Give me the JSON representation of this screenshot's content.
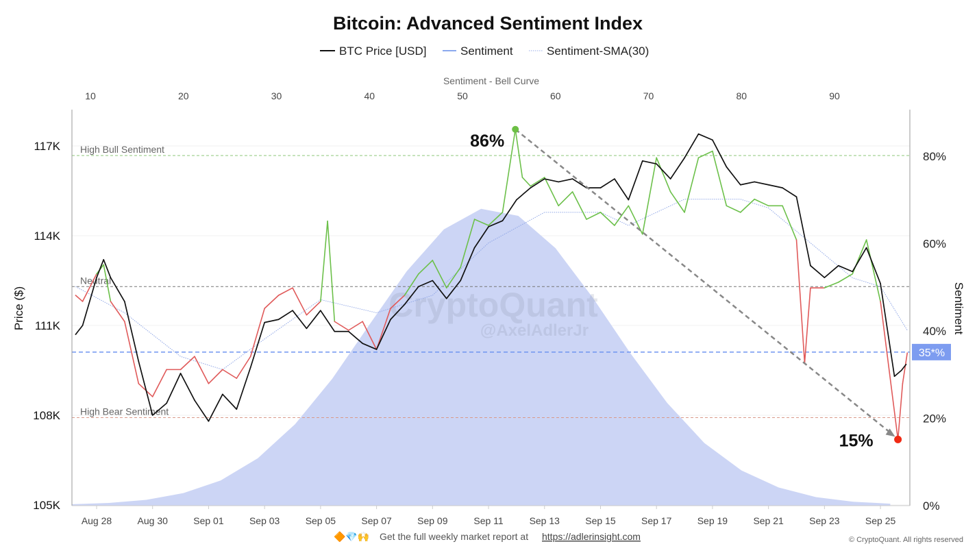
{
  "chart_data": {
    "type": "line",
    "title": "Bitcoin: Advanced Sentiment Index",
    "legend": [
      {
        "label": "BTC Price [USD]",
        "color": "#111111",
        "style": "solid"
      },
      {
        "label": "Sentiment",
        "color": "#8aa8ee",
        "style": "solid"
      },
      {
        "label": "Sentiment-SMA(30)",
        "color": "#9aaee8",
        "style": "dotted"
      }
    ],
    "legend_placement": "top",
    "grid": true,
    "top_axis": {
      "label": "Sentiment - Bell Curve",
      "ticks": [
        10,
        20,
        30,
        40,
        50,
        60,
        70,
        80,
        90
      ]
    },
    "x_ticks": [
      "Aug 28",
      "Aug 30",
      "Sep 01",
      "Sep 03",
      "Sep 05",
      "Sep 07",
      "Sep 09",
      "Sep 11",
      "Sep 13",
      "Sep 15",
      "Sep 17",
      "Sep 19",
      "Sep 21",
      "Sep 23",
      "Sep 25"
    ],
    "y_left": {
      "label": "Price ($)",
      "unit": "K",
      "ticks": [
        105,
        108,
        111,
        114,
        117
      ],
      "tick_labels": [
        "105K",
        "108K",
        "111K",
        "114K",
        "117K"
      ]
    },
    "y_right": {
      "label": "Sentiment",
      "ticks": [
        0,
        20,
        40,
        60,
        80
      ],
      "tick_labels": [
        "0%",
        "20%",
        "40%",
        "60%",
        "80%"
      ]
    },
    "reference_lines": [
      {
        "label": "High Bull Sentiment",
        "value": 80,
        "color": "#8cc77a"
      },
      {
        "label": "Neutral",
        "value": 50,
        "color": "#777777"
      },
      {
        "label": "High Bear Sentiment",
        "value": 20,
        "color": "#d99a8a"
      },
      {
        "label": "35*%",
        "value": 35,
        "color": "#6f95f0"
      }
    ],
    "annotations": [
      {
        "text": "86%",
        "x": "Sep 11 23:00",
        "y": 86,
        "color": "#6cbf45"
      },
      {
        "text": "15%",
        "x": "Sep 25 15:00",
        "y": 15,
        "color": "#f02a14"
      }
    ],
    "colors": {
      "bullish": "#6cc04a",
      "bearish": "#e05a5a",
      "price": "#111111",
      "bell": "#c9d3f4",
      "sma": "#8fa6e6"
    },
    "watermark": "CryptoQuant @AxelAdlerJr",
    "series": [
      {
        "name": "BTC Price [USD]",
        "axis": "left",
        "points": [
          [
            "Aug 27 06:00",
            110.7
          ],
          [
            "Aug 27 12:00",
            111.0
          ],
          [
            "Aug 28 00:00",
            112.6
          ],
          [
            "Aug 28 06:00",
            113.2
          ],
          [
            "Aug 28 12:00",
            112.6
          ],
          [
            "Aug 29 00:00",
            111.8
          ],
          [
            "Aug 29 12:00",
            109.8
          ],
          [
            "Aug 30 00:00",
            108.0
          ],
          [
            "Aug 30 12:00",
            108.4
          ],
          [
            "Aug 31 00:00",
            109.4
          ],
          [
            "Aug 31 12:00",
            108.5
          ],
          [
            "Sep 1 00:00",
            107.8
          ],
          [
            "Sep 1 12:00",
            108.7
          ],
          [
            "Sep 2 00:00",
            108.2
          ],
          [
            "Sep 2 12:00",
            109.6
          ],
          [
            "Sep 3 00:00",
            111.1
          ],
          [
            "Sep 3 12:00",
            111.2
          ],
          [
            "Sep 4 00:00",
            111.5
          ],
          [
            "Sep 4 12:00",
            110.9
          ],
          [
            "Sep 5 00:00",
            111.5
          ],
          [
            "Sep 5 12:00",
            110.8
          ],
          [
            "Sep 6 00:00",
            110.8
          ],
          [
            "Sep 6 12:00",
            110.4
          ],
          [
            "Sep 7 00:00",
            110.2
          ],
          [
            "Sep 7 12:00",
            111.2
          ],
          [
            "Sep 8 00:00",
            111.7
          ],
          [
            "Sep 8 12:00",
            112.3
          ],
          [
            "Sep 9 00:00",
            112.5
          ],
          [
            "Sep 9 12:00",
            111.9
          ],
          [
            "Sep 10 00:00",
            112.5
          ],
          [
            "Sep 10 12:00",
            113.6
          ],
          [
            "Sep 11 00:00",
            114.3
          ],
          [
            "Sep 11 12:00",
            114.5
          ],
          [
            "Sep 12 00:00",
            115.2
          ],
          [
            "Sep 12 12:00",
            115.6
          ],
          [
            "Sep 13 00:00",
            115.9
          ],
          [
            "Sep 13 12:00",
            115.8
          ],
          [
            "Sep 14 00:00",
            115.9
          ],
          [
            "Sep 14 12:00",
            115.6
          ],
          [
            "Sep 15 00:00",
            115.6
          ],
          [
            "Sep 15 12:00",
            115.9
          ],
          [
            "Sep 16 00:00",
            115.2
          ],
          [
            "Sep 16 12:00",
            116.5
          ],
          [
            "Sep 17 00:00",
            116.4
          ],
          [
            "Sep 17 12:00",
            115.9
          ],
          [
            "Sep 18 00:00",
            116.6
          ],
          [
            "Sep 18 12:00",
            117.4
          ],
          [
            "Sep 19 00:00",
            117.2
          ],
          [
            "Sep 19 12:00",
            116.3
          ],
          [
            "Sep 20 00:00",
            115.7
          ],
          [
            "Sep 20 12:00",
            115.8
          ],
          [
            "Sep 21 00:00",
            115.7
          ],
          [
            "Sep 21 12:00",
            115.6
          ],
          [
            "Sep 22 00:00",
            115.3
          ],
          [
            "Sep 22 12:00",
            113.0
          ],
          [
            "Sep 23 00:00",
            112.6
          ],
          [
            "Sep 23 12:00",
            113.0
          ],
          [
            "Sep 24 00:00",
            112.8
          ],
          [
            "Sep 24 12:00",
            113.6
          ],
          [
            "Sep 25 00:00",
            112.4
          ],
          [
            "Sep 25 12:00",
            109.3
          ],
          [
            "Sep 25 18:00",
            109.5
          ],
          [
            "Sep 25 22:00",
            109.7
          ]
        ]
      },
      {
        "name": "Sentiment",
        "axis": "right",
        "points": [
          [
            "Aug 27 06:00",
            48
          ],
          [
            "Aug 27 12:00",
            46.6
          ],
          [
            "Aug 28 00:00",
            52.9
          ],
          [
            "Aug 28 06:00",
            55
          ],
          [
            "Aug 28 12:00",
            46.6
          ],
          [
            "Aug 29 00:00",
            42
          ],
          [
            "Aug 29 12:00",
            27.8
          ],
          [
            "Aug 30 00:00",
            24.8
          ],
          [
            "Aug 30 12:00",
            31
          ],
          [
            "Aug 31 00:00",
            31
          ],
          [
            "Aug 31 12:00",
            34
          ],
          [
            "Sep 1 00:00",
            27.8
          ],
          [
            "Sep 1 12:00",
            31
          ],
          [
            "Sep 2 00:00",
            29
          ],
          [
            "Sep 2 12:00",
            34
          ],
          [
            "Sep 3 00:00",
            45
          ],
          [
            "Sep 3 12:00",
            48
          ],
          [
            "Sep 4 00:00",
            49.7
          ],
          [
            "Sep 4 12:00",
            43.5
          ],
          [
            "Sep 5 00:00",
            46.6
          ],
          [
            "Sep 5 06:00",
            65
          ],
          [
            "Sep 5 12:00",
            42
          ],
          [
            "Sep 6 00:00",
            40
          ],
          [
            "Sep 6 12:00",
            42
          ],
          [
            "Sep 7 00:00",
            35.6
          ],
          [
            "Sep 7 12:00",
            45
          ],
          [
            "Sep 8 00:00",
            48
          ],
          [
            "Sep 8 12:00",
            52.9
          ],
          [
            "Sep 9 00:00",
            56
          ],
          [
            "Sep 9 12:00",
            49.7
          ],
          [
            "Sep 10 00:00",
            54.4
          ],
          [
            "Sep 10 12:00",
            65.4
          ],
          [
            "Sep 11 00:00",
            64
          ],
          [
            "Sep 11 12:00",
            67
          ],
          [
            "Sep 11 23:00",
            86
          ],
          [
            "Sep 12 05:00",
            75
          ],
          [
            "Sep 12 12:00",
            73
          ],
          [
            "Sep 13 00:00",
            75
          ],
          [
            "Sep 13 12:00",
            68.5
          ],
          [
            "Sep 14 00:00",
            71.7
          ],
          [
            "Sep 14 12:00",
            65.4
          ],
          [
            "Sep 15 00:00",
            67
          ],
          [
            "Sep 15 12:00",
            64
          ],
          [
            "Sep 16 00:00",
            68.5
          ],
          [
            "Sep 16 12:00",
            62
          ],
          [
            "Sep 17 00:00",
            79.5
          ],
          [
            "Sep 17 12:00",
            71.7
          ],
          [
            "Sep 18 00:00",
            67
          ],
          [
            "Sep 18 12:00",
            79.5
          ],
          [
            "Sep 19 00:00",
            81
          ],
          [
            "Sep 19 12:00",
            68.5
          ],
          [
            "Sep 20 00:00",
            67
          ],
          [
            "Sep 20 12:00",
            70
          ],
          [
            "Sep 21 00:00",
            68.5
          ],
          [
            "Sep 21 12:00",
            68.5
          ],
          [
            "Sep 22 00:00",
            60.7
          ],
          [
            "Sep 22 07:00",
            32.5
          ],
          [
            "Sep 22 12:00",
            49.7
          ],
          [
            "Sep 23 00:00",
            49.7
          ],
          [
            "Sep 23 12:00",
            51
          ],
          [
            "Sep 24 00:00",
            52.9
          ],
          [
            "Sep 24 12:00",
            60.7
          ],
          [
            "Sep 25 00:00",
            46.6
          ],
          [
            "Sep 25 15:00",
            15
          ],
          [
            "Sep 25 19:00",
            27.8
          ],
          [
            "Sep 25 23:00",
            34.8
          ]
        ]
      },
      {
        "name": "Sentiment-SMA(30)",
        "axis": "right",
        "points": [
          [
            "Aug 27 06:00",
            50
          ],
          [
            "Aug 29 00:00",
            44
          ],
          [
            "Aug 31 00:00",
            34
          ],
          [
            "Sep 1 12:00",
            31
          ],
          [
            "Sep 3 00:00",
            38
          ],
          [
            "Sep 5 00:00",
            47
          ],
          [
            "Sep 7 00:00",
            44
          ],
          [
            "Sep 9 00:00",
            48
          ],
          [
            "Sep 11 00:00",
            60
          ],
          [
            "Sep 13 00:00",
            67
          ],
          [
            "Sep 15 00:00",
            67
          ],
          [
            "Sep 16 00:00",
            64
          ],
          [
            "Sep 18 00:00",
            70
          ],
          [
            "Sep 20 00:00",
            70
          ],
          [
            "Sep 21 00:00",
            68
          ],
          [
            "Sep 22 12:00",
            60
          ],
          [
            "Sep 24 00:00",
            52
          ],
          [
            "Sep 25 00:00",
            50
          ],
          [
            "Sep 25 23:00",
            40
          ]
        ]
      }
    ],
    "bell_curve": {
      "x": [
        8,
        12,
        16,
        20,
        24,
        28,
        32,
        36,
        40,
        44,
        48,
        52,
        56,
        60,
        64,
        68,
        72,
        76,
        80,
        84,
        88,
        92,
        96
      ],
      "y": [
        0.17,
        0.47,
        1.18,
        2.72,
        5.6,
        10.7,
        18.5,
        28.9,
        41.3,
        53.5,
        63.1,
        67.8,
        66.2,
        58.8,
        47.5,
        34.9,
        23.4,
        14.2,
        7.9,
        4.0,
        1.8,
        0.75,
        0.29
      ]
    },
    "current_value_label": "35*%"
  },
  "footer": {
    "emoji": "🔶💎🙌",
    "text": "Get the full weekly market report at",
    "link": "https://adlerinsight.com",
    "copyright": "© CryptoQuant. All rights reserved"
  }
}
